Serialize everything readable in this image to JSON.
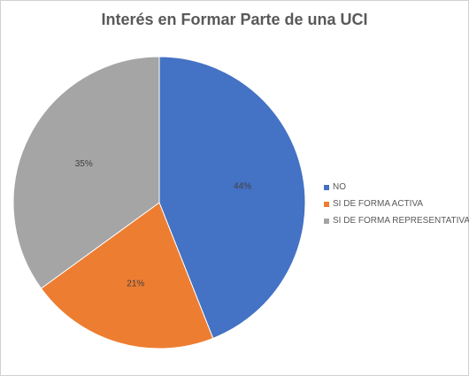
{
  "chart_data": {
    "type": "pie",
    "title": "Interés en Formar Parte de una UCI",
    "categories": [
      "NO",
      "SI DE FORMA ACTIVA",
      "SI DE FORMA REPRESENTATIVA"
    ],
    "values": [
      44,
      21,
      35
    ],
    "value_labels": [
      "44%",
      "21%",
      "35%"
    ],
    "colors": [
      "#4472C4",
      "#ED7D31",
      "#A5A5A5"
    ],
    "start_angle_deg": 0,
    "direction": "clockwise",
    "legend": "right",
    "grid": false
  }
}
